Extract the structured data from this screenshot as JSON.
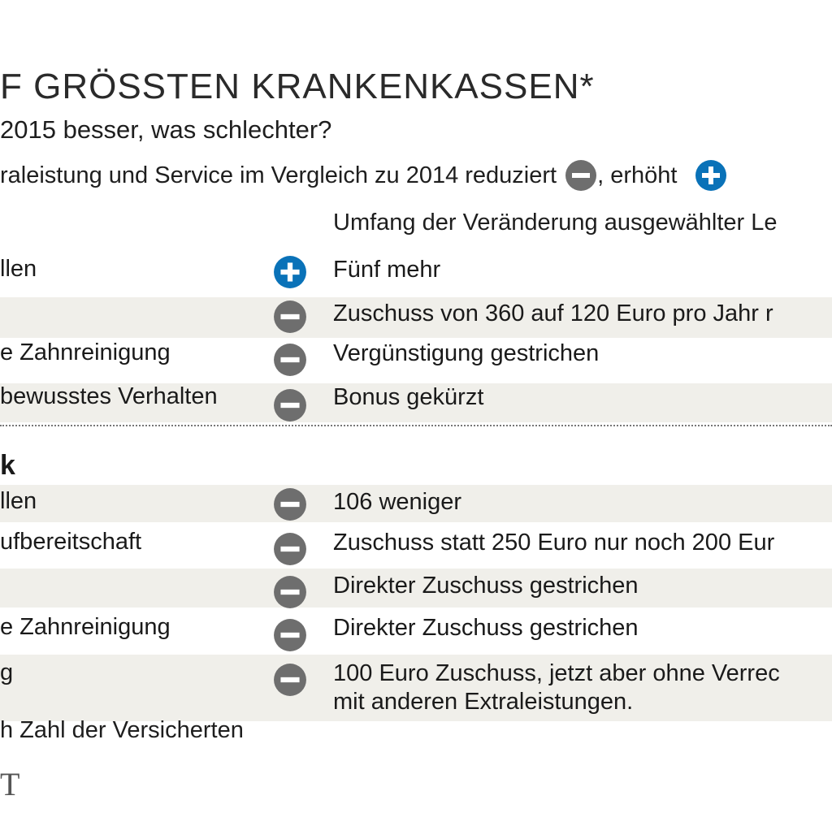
{
  "header": {
    "title": "F GRÖSSTEN KRANKENKASSEN*",
    "subtitle": "2015 besser, was schlechter?",
    "legend_text": "raleistung und Service im Vergleich zu 2014 reduziert",
    "legend_raised": ", erhöht",
    "column_header": "Umfang der Veränderung ausgewählter Le"
  },
  "section1": {
    "rows": [
      {
        "label": "llen",
        "icon": "plus-icon",
        "desc": "Fünf mehr"
      },
      {
        "label": "",
        "icon": "minus-icon",
        "desc": "Zuschuss von 360 auf 120 Euro pro Jahr r"
      },
      {
        "label": "e Zahnreinigung",
        "icon": "minus-icon",
        "desc": "Vergünstigung gestrichen"
      },
      {
        "label": "bewusstes Verhalten",
        "icon": "minus-icon",
        "desc": "Bonus gekürzt"
      }
    ]
  },
  "section2": {
    "heading": "k",
    "rows": [
      {
        "label": "llen",
        "icon": "minus-icon",
        "desc": "106 weniger"
      },
      {
        "label": "ufbereitschaft",
        "icon": "minus-icon",
        "desc": "Zuschuss statt 250 Euro nur noch 200 Eur"
      },
      {
        "label": "",
        "icon": "minus-icon",
        "desc": "Direkter Zuschuss gestrichen"
      },
      {
        "label": "e Zahnreinigung",
        "icon": "minus-icon",
        "desc": "Direkter Zuschuss gestrichen"
      },
      {
        "label": "g",
        "icon": "minus-icon",
        "desc": "100 Euro Zuschuss, jetzt aber ohne Verrec",
        "desc2": "mit anderen Extraleistungen."
      }
    ]
  },
  "footnote": "h Zahl der Versicherten",
  "logo_letter": "T",
  "colors": {
    "plus": "#0a72b8",
    "minus": "#6e6e6e",
    "shade": "#f0efea"
  }
}
